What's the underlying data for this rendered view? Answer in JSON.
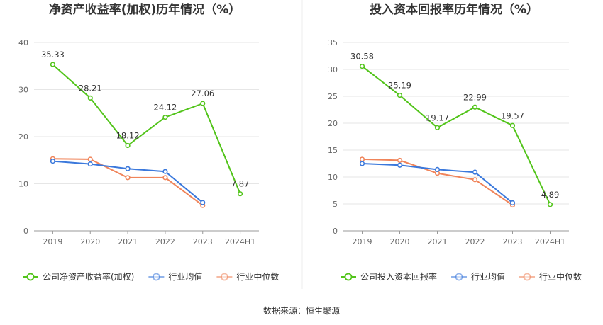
{
  "source_label": "数据来源：恒生聚源",
  "chart_data": [
    {
      "type": "line",
      "title": "净资产收益率(加权)历年情况（%）",
      "categories": [
        "2019",
        "2020",
        "2021",
        "2022",
        "2023",
        "2024H1"
      ],
      "ylim": [
        0,
        40
      ],
      "yticks": [
        0,
        10,
        20,
        30,
        40
      ],
      "grid": true,
      "legend_position": "bottom",
      "series": [
        {
          "name": "公司净资产收益率(加权)",
          "color": "#52c41a",
          "values": [
            35.33,
            28.21,
            18.12,
            24.12,
            27.06,
            7.87
          ],
          "labels": [
            "35.33",
            "28.21",
            "18.12",
            "24.12",
            "27.06",
            "7.87"
          ]
        },
        {
          "name": "行业均值",
          "color": "#3a78dc",
          "values": [
            14.8,
            14.2,
            13.2,
            12.6,
            6.0,
            null
          ]
        },
        {
          "name": "行业中位数",
          "color": "#f0845a",
          "values": [
            15.3,
            15.2,
            11.3,
            11.3,
            5.4,
            null
          ]
        }
      ]
    },
    {
      "type": "line",
      "title": "投入资本回报率历年情况（%）",
      "categories": [
        "2019",
        "2020",
        "2021",
        "2022",
        "2023",
        "2024H1"
      ],
      "ylim": [
        0,
        35
      ],
      "yticks": [
        0,
        5,
        10,
        15,
        20,
        25,
        30,
        35
      ],
      "grid": true,
      "legend_position": "bottom",
      "series": [
        {
          "name": "公司投入资本回报率",
          "color": "#52c41a",
          "values": [
            30.58,
            25.19,
            19.17,
            22.99,
            19.57,
            4.89
          ],
          "labels": [
            "30.58",
            "25.19",
            "19.17",
            "22.99",
            "19.57",
            "4.89"
          ]
        },
        {
          "name": "行业均值",
          "color": "#3a78dc",
          "values": [
            12.5,
            12.2,
            11.4,
            10.9,
            5.2,
            null
          ]
        },
        {
          "name": "行业中位数",
          "color": "#f0845a",
          "values": [
            13.3,
            13.1,
            10.7,
            9.5,
            4.8,
            null
          ]
        }
      ]
    }
  ]
}
